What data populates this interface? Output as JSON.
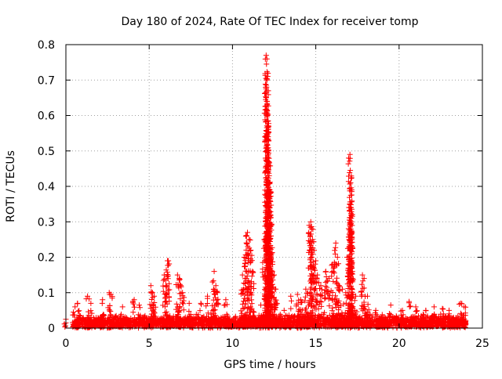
{
  "chart_data": {
    "type": "scatter",
    "title": "Day 180 of 2024, Rate Of TEC Index for receiver tomp",
    "xlabel": "GPS time / hours",
    "ylabel": "ROTI / TECUs",
    "xlim": [
      0,
      25
    ],
    "ylim": [
      0,
      0.8
    ],
    "xticks": [
      0,
      5,
      10,
      15,
      20,
      25
    ],
    "yticks": [
      0,
      0.1,
      0.2,
      0.3,
      0.4,
      0.5,
      0.6,
      0.7,
      0.8
    ],
    "xtick_labels": [
      "0",
      "5",
      "10",
      "15",
      "20",
      "25"
    ],
    "ytick_labels": [
      "0",
      "0.1",
      "0.2",
      "0.3",
      "0.4",
      "0.5",
      "0.6",
      "0.7",
      "0.8"
    ],
    "grid": true,
    "marker": "+",
    "marker_color": "#ff0000",
    "baseline": {
      "x_start": 0.4,
      "x_end": 24.0,
      "y_min": 0.0,
      "y_typical_max": 0.04,
      "dense_points": 2600
    },
    "series": [
      {
        "name": "ROTI",
        "points": [
          [
            0.0,
            0.015
          ],
          [
            0.0,
            0.025
          ],
          [
            0.45,
            0.045
          ],
          [
            0.55,
            0.06
          ],
          [
            0.7,
            0.07
          ],
          [
            1.3,
            0.09
          ],
          [
            1.5,
            0.07
          ],
          [
            2.2,
            0.08
          ],
          [
            2.6,
            0.1
          ],
          [
            2.7,
            0.095
          ],
          [
            3.4,
            0.06
          ],
          [
            4.1,
            0.08
          ],
          [
            4.4,
            0.065
          ],
          [
            5.1,
            0.12
          ],
          [
            5.2,
            0.1
          ],
          [
            5.3,
            0.09
          ],
          [
            5.9,
            0.15
          ],
          [
            6.0,
            0.12
          ],
          [
            6.1,
            0.19
          ],
          [
            6.15,
            0.19
          ],
          [
            6.7,
            0.15
          ],
          [
            6.8,
            0.14
          ],
          [
            6.9,
            0.12
          ],
          [
            7.0,
            0.1
          ],
          [
            7.4,
            0.07
          ],
          [
            8.1,
            0.07
          ],
          [
            8.5,
            0.09
          ],
          [
            8.8,
            0.13
          ],
          [
            8.9,
            0.16
          ],
          [
            9.0,
            0.12
          ],
          [
            9.1,
            0.1
          ],
          [
            9.6,
            0.08
          ],
          [
            10.6,
            0.15
          ],
          [
            10.7,
            0.2
          ],
          [
            10.8,
            0.26
          ],
          [
            10.9,
            0.27
          ],
          [
            11.0,
            0.25
          ],
          [
            11.1,
            0.22
          ],
          [
            11.2,
            0.16
          ],
          [
            11.7,
            0.065
          ],
          [
            11.9,
            0.25
          ],
          [
            12.0,
            0.33
          ],
          [
            12.02,
            0.77
          ],
          [
            12.04,
            0.745
          ],
          [
            12.06,
            0.7
          ],
          [
            12.08,
            0.64
          ],
          [
            12.1,
            0.6
          ],
          [
            12.12,
            0.57
          ],
          [
            12.14,
            0.54
          ],
          [
            12.16,
            0.5
          ],
          [
            12.18,
            0.46
          ],
          [
            12.2,
            0.43
          ],
          [
            12.22,
            0.41
          ],
          [
            12.24,
            0.39
          ],
          [
            12.26,
            0.36
          ],
          [
            12.28,
            0.32
          ],
          [
            12.3,
            0.26
          ],
          [
            12.35,
            0.21
          ],
          [
            12.4,
            0.18
          ],
          [
            12.5,
            0.15
          ],
          [
            12.6,
            0.11
          ],
          [
            13.1,
            0.05
          ],
          [
            13.5,
            0.09
          ],
          [
            13.9,
            0.095
          ],
          [
            14.1,
            0.08
          ],
          [
            14.4,
            0.11
          ],
          [
            14.6,
            0.29
          ],
          [
            14.7,
            0.3
          ],
          [
            14.75,
            0.28
          ],
          [
            14.8,
            0.25
          ],
          [
            14.9,
            0.22
          ],
          [
            15.0,
            0.19
          ],
          [
            15.1,
            0.15
          ],
          [
            15.3,
            0.12
          ],
          [
            15.6,
            0.16
          ],
          [
            15.8,
            0.14
          ],
          [
            16.0,
            0.18
          ],
          [
            16.2,
            0.24
          ],
          [
            16.3,
            0.2
          ],
          [
            16.4,
            0.12
          ],
          [
            16.6,
            0.11
          ],
          [
            16.8,
            0.1
          ],
          [
            16.95,
            0.2
          ],
          [
            17.0,
            0.25
          ],
          [
            17.05,
            0.49
          ],
          [
            17.07,
            0.445
          ],
          [
            17.09,
            0.41
          ],
          [
            17.1,
            0.375
          ],
          [
            17.12,
            0.34
          ],
          [
            17.14,
            0.3
          ],
          [
            17.16,
            0.25
          ],
          [
            17.2,
            0.16
          ],
          [
            17.4,
            0.09
          ],
          [
            17.8,
            0.15
          ],
          [
            17.9,
            0.14
          ],
          [
            18.1,
            0.09
          ],
          [
            18.6,
            0.05
          ],
          [
            19.5,
            0.065
          ],
          [
            20.2,
            0.05
          ],
          [
            20.6,
            0.075
          ],
          [
            21.0,
            0.06
          ],
          [
            21.6,
            0.05
          ],
          [
            22.1,
            0.06
          ],
          [
            22.6,
            0.055
          ],
          [
            23.0,
            0.05
          ],
          [
            23.7,
            0.07
          ],
          [
            23.9,
            0.06
          ]
        ]
      }
    ]
  }
}
